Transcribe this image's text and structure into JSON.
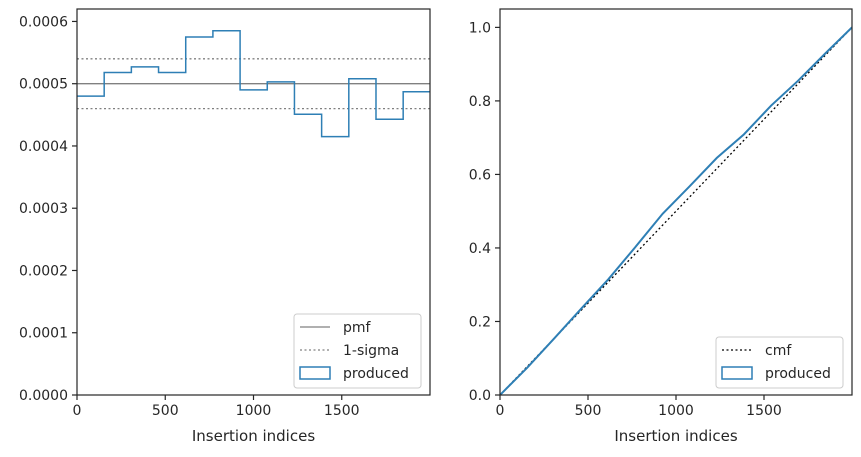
{
  "chart_data": [
    {
      "type": "line",
      "xlabel": "Insertion indices",
      "ylabel": "",
      "xlim": [
        0,
        2000
      ],
      "ylim": [
        0,
        0.00062
      ],
      "xticks": [
        "0",
        "500",
        "1000",
        "1500"
      ],
      "xtick_values": [
        0,
        500,
        1000,
        1500
      ],
      "yticks": [
        "0.0000",
        "0.0001",
        "0.0002",
        "0.0003",
        "0.0004",
        "0.0005",
        "0.0006"
      ],
      "ytick_values": [
        0,
        0.0001,
        0.0002,
        0.0003,
        0.0004,
        0.0005,
        0.0006
      ],
      "grid": false,
      "legend_position": "lower-right",
      "series": [
        {
          "name": "pmf",
          "style": "solid",
          "color": "#808080",
          "x": [
            0,
            2000
          ],
          "y": [
            0.0005,
            0.0005
          ]
        },
        {
          "name": "1-sigma",
          "style": "dotted",
          "color": "#808080",
          "x": [
            0,
            2000
          ],
          "y": [
            0.00054,
            0.00054
          ]
        },
        {
          "name": "",
          "style": "dotted",
          "color": "#808080",
          "x": [
            0,
            2000
          ],
          "y": [
            0.00046,
            0.00046
          ]
        },
        {
          "name": "produced",
          "style": "step",
          "color": "#2e7fb5",
          "bin_edges": [
            0,
            154,
            308,
            462,
            616,
            770,
            924,
            1078,
            1232,
            1386,
            1540,
            1694,
            1848,
            2000
          ],
          "values": [
            0.00048,
            0.000518,
            0.000527,
            0.000518,
            0.000575,
            0.000585,
            0.00049,
            0.000503,
            0.000451,
            0.000415,
            0.000508,
            0.000443,
            0.000487
          ]
        }
      ],
      "legend": [
        "pmf",
        "1-sigma",
        "produced"
      ]
    },
    {
      "type": "line",
      "xlabel": "Insertion indices",
      "ylabel": "",
      "xlim": [
        0,
        2000
      ],
      "ylim": [
        0,
        1.05
      ],
      "xticks": [
        "0",
        "500",
        "1000",
        "1500"
      ],
      "xtick_values": [
        0,
        500,
        1000,
        1500
      ],
      "yticks": [
        "0.0",
        "0.2",
        "0.4",
        "0.6",
        "0.8",
        "1.0"
      ],
      "ytick_values": [
        0,
        0.2,
        0.4,
        0.6,
        0.8,
        1.0
      ],
      "grid": false,
      "legend_position": "lower-right",
      "series": [
        {
          "name": "cmf",
          "style": "dotted",
          "color": "#000000",
          "x": [
            0,
            2000
          ],
          "y": [
            0,
            1.0
          ]
        },
        {
          "name": "produced",
          "style": "solid",
          "color": "#2e7fb5",
          "x": [
            0,
            154,
            308,
            462,
            616,
            770,
            924,
            1078,
            1232,
            1386,
            1540,
            1694,
            1848,
            2000
          ],
          "y": [
            0,
            0.074,
            0.154,
            0.235,
            0.315,
            0.403,
            0.493,
            0.568,
            0.645,
            0.709,
            0.787,
            0.855,
            0.929,
            1.0
          ]
        }
      ],
      "legend": [
        "cmf",
        "produced"
      ]
    }
  ]
}
